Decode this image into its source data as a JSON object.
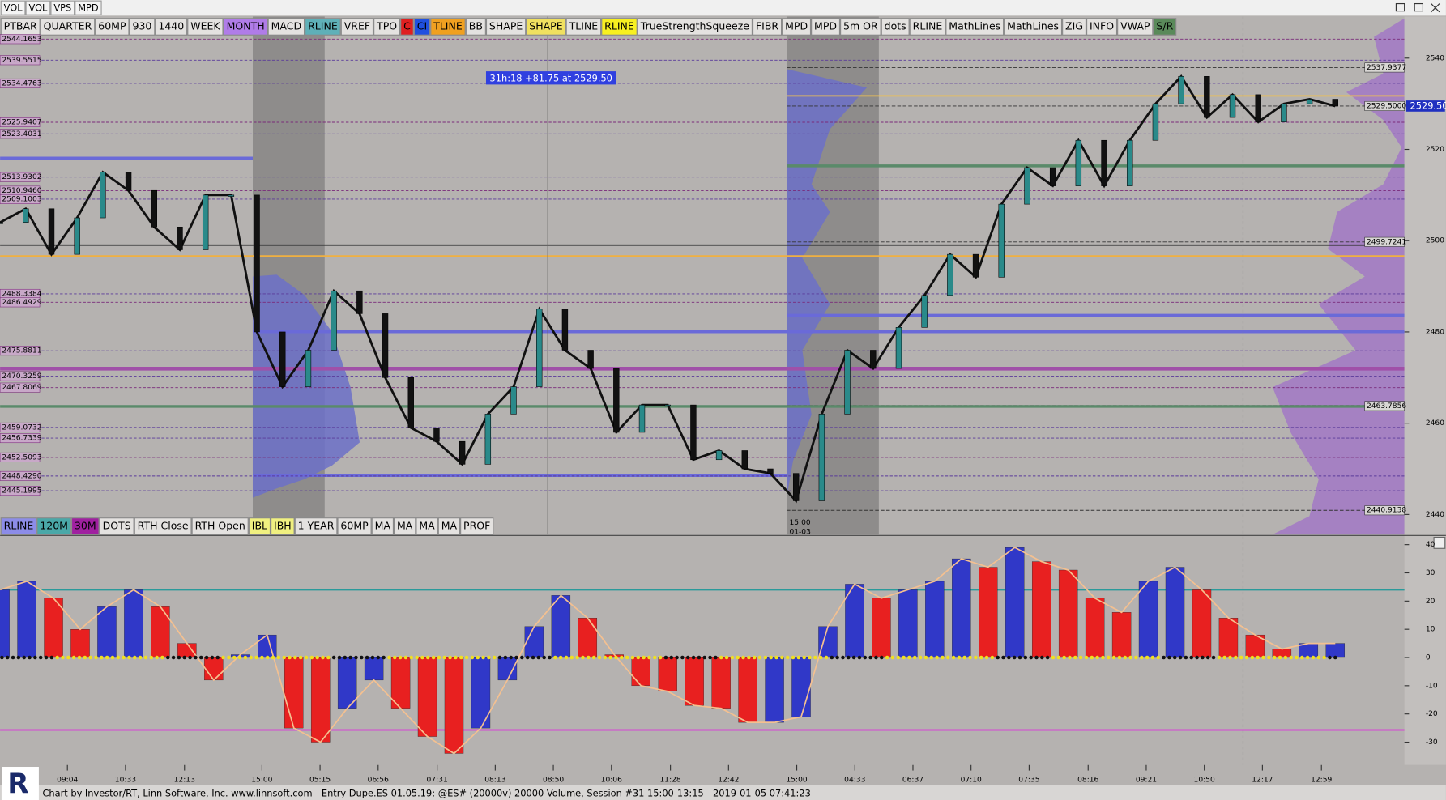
{
  "menu": [
    "VOL",
    "VOL",
    "VPS",
    "MPD"
  ],
  "toolbar": [
    {
      "label": "PTBAR"
    },
    {
      "label": "QUARTER"
    },
    {
      "label": "60MP"
    },
    {
      "label": "930"
    },
    {
      "label": "1440"
    },
    {
      "label": "WEEK"
    },
    {
      "label": "MONTH",
      "color": "#b07ce8"
    },
    {
      "label": "MACD"
    },
    {
      "label": "RLINE",
      "color": "#5fb0b8"
    },
    {
      "label": "VREF"
    },
    {
      "label": "TPO"
    },
    {
      "label": "C",
      "color": "#e02020"
    },
    {
      "label": "CI",
      "color": "#2050e0"
    },
    {
      "label": "TLINE",
      "color": "#f0a020"
    },
    {
      "label": "BB"
    },
    {
      "label": "SHAPE"
    },
    {
      "label": "SHAPE",
      "color": "#f0e060"
    },
    {
      "label": "TLINE"
    },
    {
      "label": "RLINE",
      "color": "#f8f020"
    },
    {
      "label": "TrueStrengthSqueeze"
    },
    {
      "label": "FIBR"
    },
    {
      "label": "MPD"
    },
    {
      "label": "MPD"
    },
    {
      "label": "5m OR"
    },
    {
      "label": "dots"
    },
    {
      "label": "RLINE"
    },
    {
      "label": "MathLines"
    },
    {
      "label": "MathLines"
    },
    {
      "label": "ZIG"
    },
    {
      "label": "INFO"
    },
    {
      "label": "VWAP"
    },
    {
      "label": "S/R",
      "color": "#5a8a5a"
    }
  ],
  "bottom_toolbar": [
    {
      "label": "RLINE",
      "color": "#8c8ce8"
    },
    {
      "label": "120M",
      "color": "#4aa8a8"
    },
    {
      "label": "30M",
      "color": "#a020a0"
    },
    {
      "label": "DOTS"
    },
    {
      "label": "RTH Close"
    },
    {
      "label": "RTH Open"
    },
    {
      "label": "IBL",
      "color": "#f0f080"
    },
    {
      "label": "IBH",
      "color": "#f0f080"
    },
    {
      "label": "1 YEAR"
    },
    {
      "label": "60MP"
    },
    {
      "label": "MA"
    },
    {
      "label": "MA"
    },
    {
      "label": "MA"
    },
    {
      "label": "MA"
    },
    {
      "label": "PROF"
    }
  ],
  "price_chart": {
    "type": "line",
    "color": "#111111",
    "values": [
      2504,
      2507,
      2497,
      2505,
      2515,
      2511,
      2503,
      2498,
      2510,
      2510,
      2480,
      2468,
      2476,
      2489,
      2484,
      2470,
      2459,
      2456,
      2451,
      2462,
      2468,
      2485,
      2476,
      2472,
      2458,
      2464,
      2464,
      2452,
      2454,
      2450,
      2449,
      2443,
      2462,
      2476,
      2472,
      2481,
      2488,
      2497,
      2492,
      2508,
      2516,
      2512,
      2522,
      2512,
      2522,
      2530,
      2536,
      2527,
      2532,
      2526,
      2530,
      2531,
      2529.5
    ],
    "ylim": [
      2435.6,
      2549.1
    ],
    "yticks": [
      2540,
      2520,
      2500,
      2480,
      2460,
      2440
    ],
    "left_levels": [
      {
        "value": 2544.1653,
        "label": "2544.1653"
      },
      {
        "value": 2539.5515,
        "label": "2539.5515"
      },
      {
        "value": 2534.4763,
        "label": "2534.4763"
      },
      {
        "value": 2525.9407,
        "label": "2525.9407"
      },
      {
        "value": 2523.4031,
        "label": "2523.4031"
      },
      {
        "value": 2513.9302,
        "label": "2513.9302"
      },
      {
        "value": 2510.946,
        "label": "2510.9460"
      },
      {
        "value": 2509.1003,
        "label": "2509.1003"
      },
      {
        "value": 2488.3384,
        "label": "2488.3384"
      },
      {
        "value": 2486.4929,
        "label": "2486.4929"
      },
      {
        "value": 2475.8811,
        "label": "2475.8811"
      },
      {
        "value": 2470.3259,
        "label": "2470.3259"
      },
      {
        "value": 2467.8069,
        "label": "2467.8069"
      },
      {
        "value": 2459.0732,
        "label": "2459.0732"
      },
      {
        "value": 2456.7339,
        "label": "2456.7339"
      },
      {
        "value": 2452.5093,
        "label": "2452.5093"
      },
      {
        "value": 2448.429,
        "label": "2448.4290"
      },
      {
        "value": 2445.1995,
        "label": "2445.1995"
      }
    ],
    "right_levels": [
      {
        "value": 2537.9377,
        "label": "2537.9377"
      },
      {
        "value": 2529.5,
        "label": "2529.5000"
      },
      {
        "value": 2499.7241,
        "label": "2499.7241"
      },
      {
        "value": 2463.7856,
        "label": "2463.7856"
      },
      {
        "value": 2440.9138,
        "label": "2440.9138"
      }
    ],
    "last_price": {
      "value": 2529.5,
      "label": "2529.50"
    },
    "annotation": "31h:18  +81.75 at 2529.50",
    "session_label": [
      "15:00",
      "01-03"
    ]
  },
  "macd": {
    "type": "bar",
    "values": [
      24,
      27,
      21,
      10,
      18,
      24,
      18,
      5,
      -8,
      1,
      8,
      -25,
      -30,
      -18,
      -8,
      -18,
      -28,
      -34,
      -25,
      -8,
      11,
      22,
      14,
      1,
      -10,
      -12,
      -17,
      -18,
      -23,
      -23,
      -21,
      11,
      26,
      21,
      24,
      27,
      35,
      32,
      39,
      34,
      31,
      21,
      16,
      27,
      32,
      24,
      14,
      8,
      3,
      5,
      5
    ],
    "ylim": [
      -38.1,
      42.6
    ],
    "yticks": [
      40,
      30,
      20,
      10,
      0,
      -10,
      -20,
      -30
    ]
  },
  "time_labels": [
    "09:04",
    "10:33",
    "12:13",
    "15:00",
    "05:15",
    "06:56",
    "07:31",
    "08:13",
    "08:50",
    "10:06",
    "11:28",
    "12:42",
    "15:00",
    "04:33",
    "06:37",
    "07:10",
    "07:35",
    "08:16",
    "09:21",
    "10:50",
    "12:17",
    "12:59"
  ],
  "status": "Chart by Investor/RT, Linn Software, Inc. www.linnsoft.com - Entry Dupe.ES   01.05.19: @ES# (20000v) 20000 Volume, Session #31 15:00-13:15 - 2019-01-05 07:41:23"
}
